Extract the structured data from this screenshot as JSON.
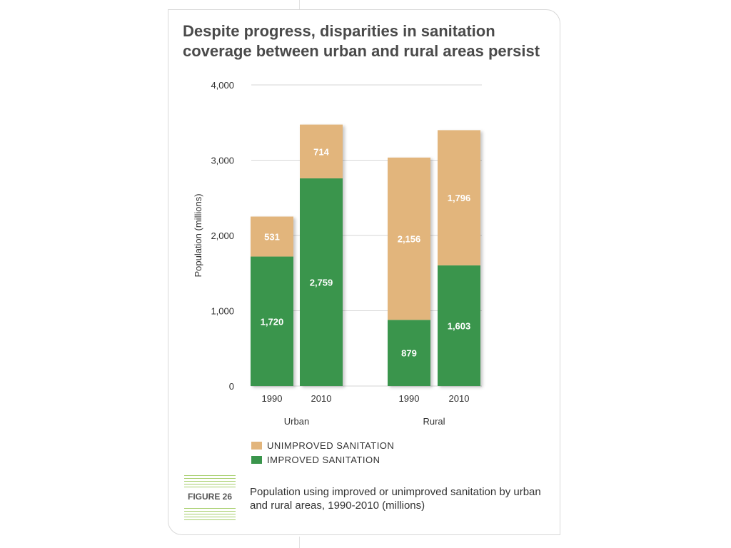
{
  "title": "Despite progress, disparities in sanitation coverage between urban and rural areas persist",
  "colors": {
    "improved": "#3a954c",
    "unimproved": "#e2b57c",
    "title": "#4a4a4a",
    "figure_stripes": "#a7cf6d"
  },
  "legend": [
    {
      "label": "UNIMPROVED SANITATION",
      "color": "#e2b57c"
    },
    {
      "label": "IMPROVED SANITATION",
      "color": "#3a954c"
    }
  ],
  "figure": {
    "label": "FIGURE 26",
    "caption": "Population using improved or unimproved sanitation by urban and rural areas, 1990-2010 (millions)"
  },
  "chart_data": {
    "type": "bar",
    "stacked": true,
    "groups": [
      "Urban",
      "Rural"
    ],
    "categories": [
      "1990",
      "2010",
      "1990",
      "2010"
    ],
    "category_groups": [
      "Urban",
      "Urban",
      "Rural",
      "Rural"
    ],
    "series": [
      {
        "name": "IMPROVED SANITATION",
        "values": [
          1720,
          2759,
          879,
          1603
        ],
        "labels": [
          "1,720",
          "2,759",
          "879",
          "1,603"
        ]
      },
      {
        "name": "UNIMPROVED SANITATION",
        "values": [
          531,
          714,
          2156,
          1796
        ],
        "labels": [
          "531",
          "714",
          "2,156",
          "1,796"
        ]
      }
    ],
    "ylabel": "Population (millions)",
    "xlabel": "",
    "ylim": [
      0,
      4000
    ],
    "yticks": [
      0,
      1000,
      2000,
      3000,
      4000
    ],
    "ytick_labels": [
      "0",
      "1,000",
      "2,000",
      "3,000",
      "4,000"
    ],
    "grid": true
  }
}
